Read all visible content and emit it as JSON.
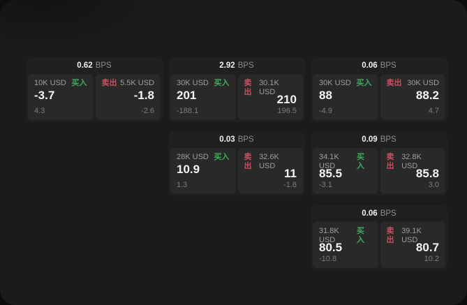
{
  "page": {
    "background": "#0d0d0d",
    "window_background": "#1b1b1b",
    "card_background": "#202020",
    "panel_background": "#292929"
  },
  "colors": {
    "buy_green": "#3fab5e",
    "sell_red": "#c9505f",
    "value_white": "#f4f4f4",
    "label_gray": "#9e9e9e",
    "sub_gray": "#7d7d7d"
  },
  "labels": {
    "bps": "BPS",
    "buy": "买入",
    "sell": "卖出"
  },
  "cards": [
    {
      "bps": "0.62",
      "buy": {
        "size": "10K USD",
        "value": "-3.7",
        "sub": "4.3"
      },
      "sell": {
        "size": "5.5K USD",
        "value": "-1.8",
        "sub": "-2.6"
      }
    },
    {
      "bps": "2.92",
      "buy": {
        "size": "30K USD",
        "value": "201",
        "sub": "-188.1"
      },
      "sell": {
        "size": "30.1K USD",
        "value": "210",
        "sub": "196.5"
      }
    },
    {
      "bps": "0.06",
      "buy": {
        "size": "30K USD",
        "value": "88",
        "sub": "-4.9"
      },
      "sell": {
        "size": "30K USD",
        "value": "88.2",
        "sub": "4.7"
      }
    },
    {
      "bps": "0.03",
      "buy": {
        "size": "28K USD",
        "value": "10.9",
        "sub": "1.3"
      },
      "sell": {
        "size": "32.6K USD",
        "value": "11",
        "sub": "-1.8"
      }
    },
    {
      "bps": "0.09",
      "buy": {
        "size": "34.1K USD",
        "value": "85.5",
        "sub": "-3.1"
      },
      "sell": {
        "size": "32.8K USD",
        "value": "85.8",
        "sub": "3.0"
      }
    },
    {
      "bps": "0.06",
      "buy": {
        "size": "31.8K USD",
        "value": "80.5",
        "sub": "-10.8"
      },
      "sell": {
        "size": "39.1K USD",
        "value": "80.7",
        "sub": "10.2"
      }
    }
  ]
}
